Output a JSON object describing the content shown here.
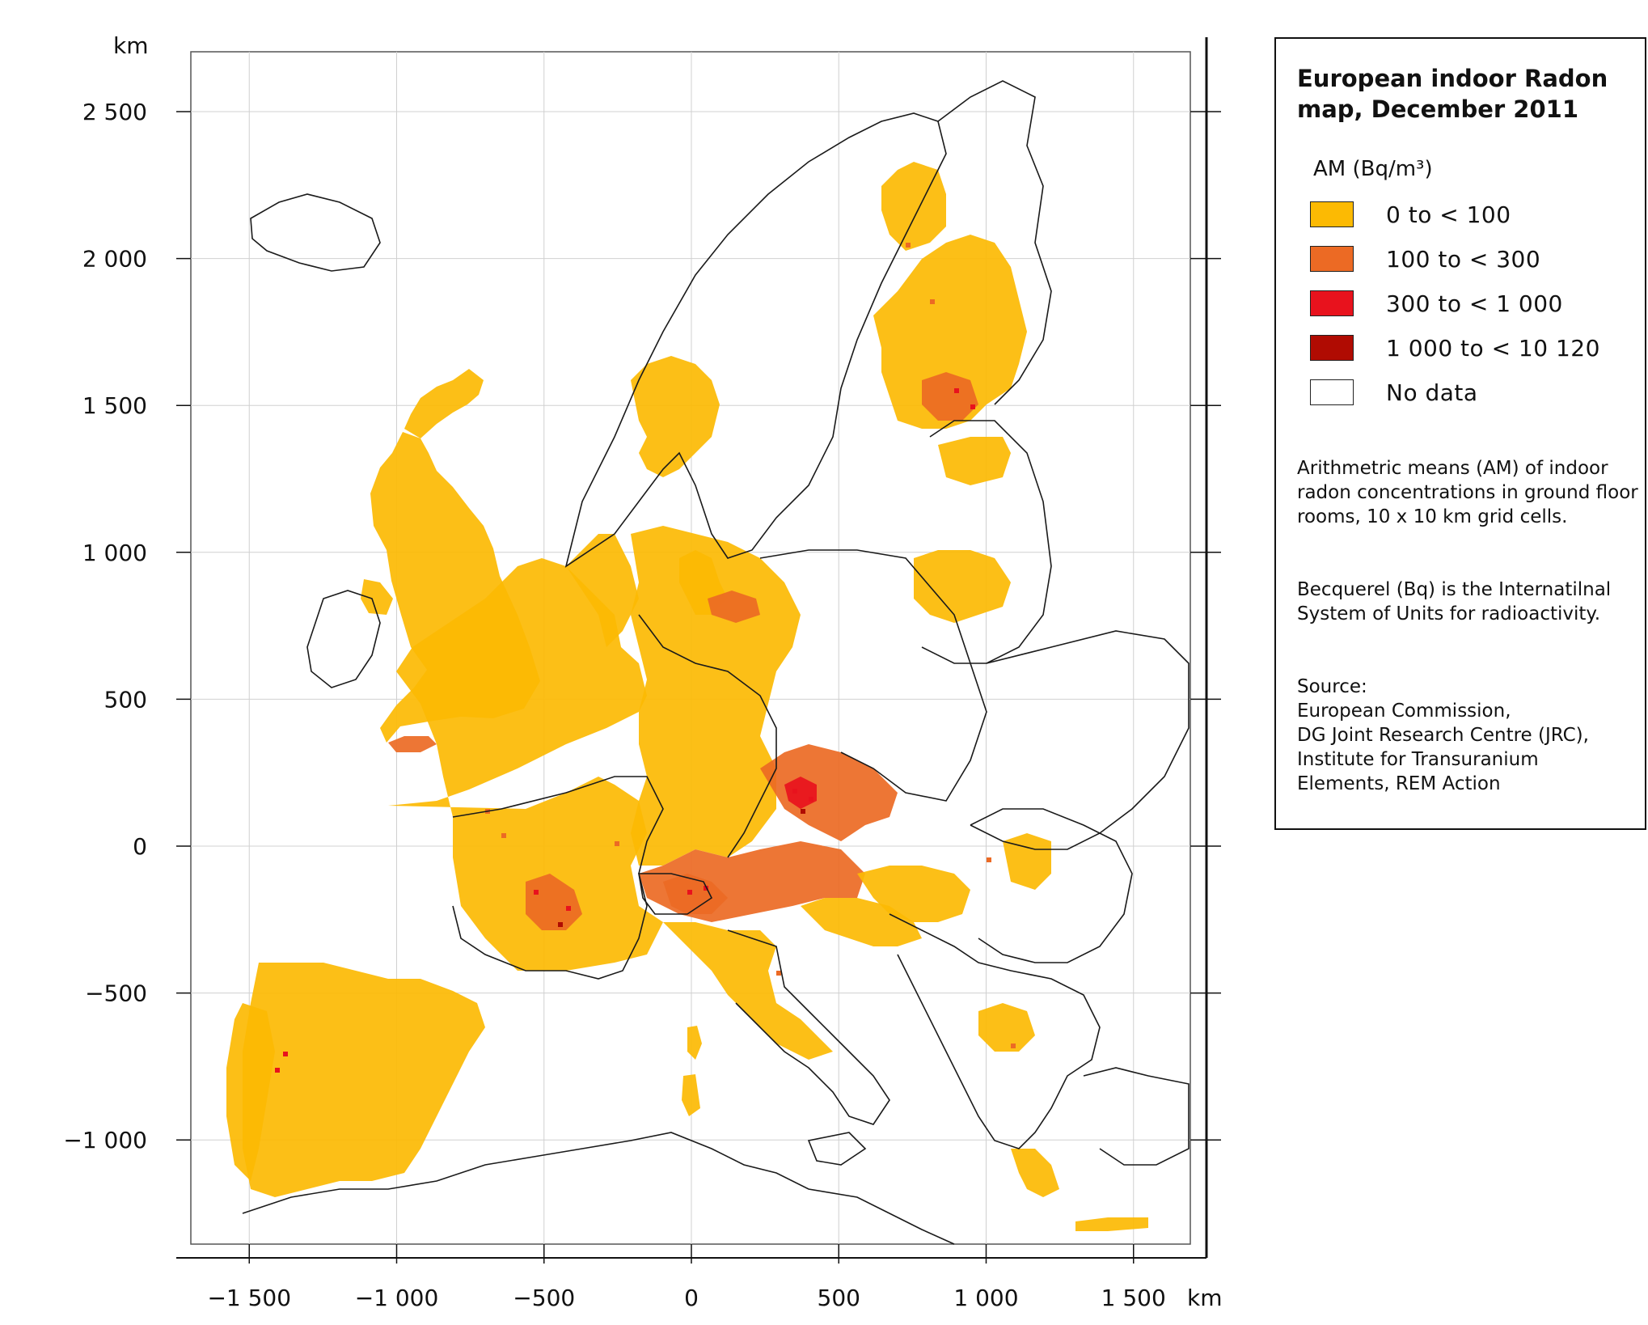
{
  "map": {
    "y_axis_unit": "km",
    "x_axis_unit": "km",
    "y_ticks": [
      {
        "value": 2500,
        "label": "2 500"
      },
      {
        "value": 2000,
        "label": "2 000"
      },
      {
        "value": 1500,
        "label": "1 500"
      },
      {
        "value": 1000,
        "label": "1 000"
      },
      {
        "value": 500,
        "label": "500"
      },
      {
        "value": 0,
        "label": "0"
      },
      {
        "value": -500,
        "label": "−500"
      },
      {
        "value": -1000,
        "label": "−1 000"
      }
    ],
    "x_ticks": [
      {
        "value": -1500,
        "label": "−1 500"
      },
      {
        "value": -1000,
        "label": "−1 000"
      },
      {
        "value": -500,
        "label": "−500"
      },
      {
        "value": 0,
        "label": "0"
      },
      {
        "value": 500,
        "label": "500"
      },
      {
        "value": 1000,
        "label": "1 000"
      },
      {
        "value": 1500,
        "label": "1 500"
      }
    ],
    "colors": {
      "class_0": "#fcba03",
      "class_1": "#ec6a24",
      "class_2": "#e8121d",
      "class_3": "#b00b02",
      "no_data": "#ffffff",
      "border": "#1a1a1a"
    }
  },
  "legend": {
    "title": "European indoor Radon map, December 2011",
    "heading": "AM (Bq/m³)",
    "classes": [
      {
        "label": "0 to < 100",
        "color": "#fcba03"
      },
      {
        "label": "100 to < 300",
        "color": "#ec6a24"
      },
      {
        "label": "300 to < 1 000",
        "color": "#e8121d"
      },
      {
        "label": "1 000 to < 10 120",
        "color": "#b00b02"
      },
      {
        "label": "No data",
        "color": "#ffffff"
      }
    ],
    "description": "Arithmetric means (AM) of indoor radon concentrations in ground floor rooms, 10 x 10 km grid cells.",
    "units_note": "Becquerel (Bq) is the Internatilnal System of Units for radioactivity.",
    "source_heading": "Source:",
    "source_lines": [
      "European Commission,",
      "DG Joint Research Centre (JRC),",
      "Institute for Transuranium",
      "Elements, REM Action"
    ]
  }
}
